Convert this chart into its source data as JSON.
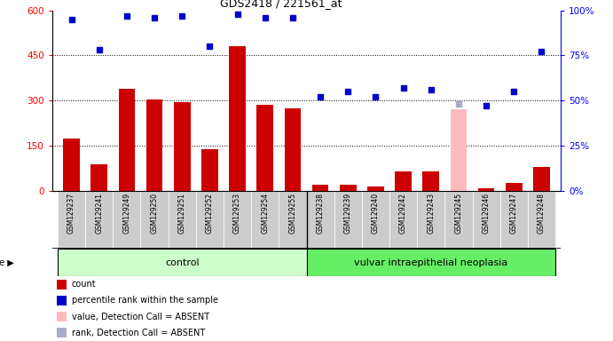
{
  "title": "GDS2418 / 221561_at",
  "samples": [
    "GSM129237",
    "GSM129241",
    "GSM129249",
    "GSM129250",
    "GSM129251",
    "GSM129252",
    "GSM129253",
    "GSM129254",
    "GSM129255",
    "GSM129238",
    "GSM129239",
    "GSM129240",
    "GSM129242",
    "GSM129243",
    "GSM129245",
    "GSM129246",
    "GSM129247",
    "GSM129248"
  ],
  "count_values": [
    175,
    90,
    340,
    305,
    295,
    140,
    480,
    285,
    275,
    20,
    20,
    15,
    65,
    65,
    8,
    8,
    28,
    80
  ],
  "percentile_values": [
    95,
    78,
    97,
    96,
    97,
    80,
    98,
    96,
    96,
    52,
    55,
    52,
    57,
    56,
    null,
    47,
    55,
    77
  ],
  "absent_rank_idx": 14,
  "absent_rank_percentile": 48,
  "absent_value_idx": 14,
  "absent_value_count": 270,
  "control_count": 9,
  "neoplasia_count": 9,
  "control_label": "control",
  "neoplasia_label": "vulvar intraepithelial neoplasia",
  "y_left_ticks": [
    0,
    150,
    300,
    450,
    600
  ],
  "y_right_ticks": [
    0,
    25,
    50,
    75,
    100
  ],
  "bar_color": "#cc0000",
  "dot_color": "#0000cc",
  "absent_value_color": "#ffbbbb",
  "absent_rank_color": "#aaaacc",
  "control_bg": "#ccffcc",
  "neoplasia_bg": "#66ee66",
  "sample_bg": "#cccccc",
  "legend_items": [
    {
      "color": "#cc0000",
      "label": "count"
    },
    {
      "color": "#0000cc",
      "label": "percentile rank within the sample"
    },
    {
      "color": "#ffbbbb",
      "label": "value, Detection Call = ABSENT"
    },
    {
      "color": "#aaaacc",
      "label": "rank, Detection Call = ABSENT"
    }
  ]
}
